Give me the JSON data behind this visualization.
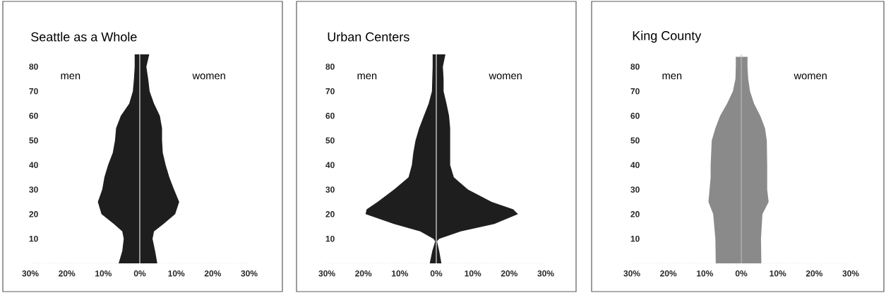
{
  "chart_data": [
    {
      "type": "area",
      "orientation": "horizontal",
      "title": "Seattle as a Whole",
      "annotations": [
        "men",
        "women"
      ],
      "xlim": [
        -30,
        30
      ],
      "ylim": [
        0,
        85
      ],
      "xticks": [
        {
          "value": -30,
          "label": "30%"
        },
        {
          "value": -20,
          "label": "20%"
        },
        {
          "value": -10,
          "label": "10%"
        },
        {
          "value": 0,
          "label": "0%"
        },
        {
          "value": 10,
          "label": "10%"
        },
        {
          "value": 20,
          "label": "20%"
        },
        {
          "value": 30,
          "label": "30%"
        }
      ],
      "yticks": [
        10,
        20,
        30,
        40,
        50,
        60,
        70,
        80
      ],
      "ref_lines": [
        {
          "axis": "x",
          "value": 0,
          "color": "#ffffff"
        }
      ],
      "series": [
        {
          "color": "#1e1e1e",
          "x": [
            0,
            5,
            10,
            13,
            16,
            20,
            25,
            30,
            35,
            40,
            45,
            50,
            55,
            60,
            65,
            70,
            75,
            80,
            85
          ],
          "values": [
            -5.8,
            -4.8,
            -4.4,
            -4.8,
            -7.1,
            -10.5,
            -11.5,
            -10.3,
            -9.7,
            -8.7,
            -7.4,
            -6.8,
            -6.5,
            -5.2,
            -2.9,
            -1.9,
            -1.6,
            -1.4,
            -1.4
          ]
        },
        {
          "color": "#1e1e1e",
          "x": [
            0,
            5,
            10,
            13,
            16,
            20,
            25,
            30,
            35,
            40,
            45,
            50,
            55,
            60,
            65,
            70,
            75,
            80,
            85
          ],
          "values": [
            4.8,
            4.2,
            3.5,
            3.9,
            6.5,
            9.7,
            10.8,
            9.4,
            8.1,
            7.1,
            6.3,
            6.1,
            6.1,
            5.5,
            3.9,
            2.7,
            2.3,
            1.8,
            2.6
          ]
        }
      ]
    },
    {
      "type": "area",
      "orientation": "horizontal",
      "title": "Urban Centers",
      "annotations": [
        "men",
        "women"
      ],
      "xlim": [
        -30,
        30
      ],
      "ylim": [
        0,
        85
      ],
      "xticks": [
        {
          "value": -30,
          "label": "30%"
        },
        {
          "value": -20,
          "label": "20%"
        },
        {
          "value": -10,
          "label": "10%"
        },
        {
          "value": 0,
          "label": "0%"
        },
        {
          "value": 10,
          "label": "10%"
        },
        {
          "value": 20,
          "label": "20%"
        },
        {
          "value": 30,
          "label": "30%"
        }
      ],
      "yticks": [
        10,
        20,
        30,
        40,
        50,
        60,
        70,
        80
      ],
      "ref_lines": [
        {
          "axis": "x",
          "value": 0,
          "color": "#ffffff"
        }
      ],
      "series": [
        {
          "color": "#1e1e1e",
          "x": [
            0,
            5,
            9,
            10,
            13,
            16,
            20,
            22,
            25,
            30,
            35,
            40,
            45,
            50,
            55,
            60,
            65,
            70,
            75,
            80,
            85
          ],
          "values": [
            -1.8,
            -1.1,
            -0.3,
            -0.8,
            -4.4,
            -11.6,
            -19.4,
            -19.1,
            -16.1,
            -11.6,
            -7.6,
            -6.7,
            -6.3,
            -5.7,
            -4.7,
            -3.4,
            -2.1,
            -1.2,
            -1.1,
            -1.0,
            -1.0
          ]
        },
        {
          "color": "#1e1e1e",
          "x": [
            0,
            5,
            9,
            10,
            13,
            16,
            20,
            22,
            25,
            30,
            35,
            40,
            45,
            50,
            55,
            60,
            65,
            70,
            75,
            80,
            85
          ],
          "values": [
            1.4,
            0.8,
            0.2,
            0.8,
            6.7,
            15.9,
            22.4,
            21.1,
            15.2,
            8.7,
            4.8,
            3.8,
            3.8,
            3.8,
            3.8,
            3.5,
            2.8,
            2.0,
            2.0,
            1.8,
            2.5
          ]
        }
      ]
    },
    {
      "type": "area",
      "orientation": "horizontal",
      "title": "King County",
      "annotations": [
        "men",
        "women"
      ],
      "xlim": [
        -30,
        30
      ],
      "ylim": [
        0,
        85
      ],
      "xticks": [
        {
          "value": -30,
          "label": "30%"
        },
        {
          "value": -20,
          "label": "20%"
        },
        {
          "value": -10,
          "label": "10%"
        },
        {
          "value": 0,
          "label": "0%"
        },
        {
          "value": 10,
          "label": "10%"
        },
        {
          "value": 20,
          "label": "20%"
        },
        {
          "value": 30,
          "label": "30%"
        }
      ],
      "yticks": [
        10,
        20,
        30,
        40,
        50,
        60,
        70,
        80
      ],
      "ref_lines": [
        {
          "axis": "x",
          "value": 0,
          "color": "#bdbdbd"
        }
      ],
      "series": [
        {
          "color": "#8a8a8a",
          "x": [
            0,
            10,
            20,
            25,
            30,
            35,
            40,
            50,
            55,
            60,
            65,
            70,
            75,
            80,
            84
          ],
          "values": [
            -7.0,
            -7.1,
            -7.7,
            -9.0,
            -8.7,
            -8.4,
            -8.4,
            -8.1,
            -7.1,
            -5.8,
            -3.9,
            -2.3,
            -1.6,
            -1.5,
            -1.5
          ]
        },
        {
          "color": "#8a8a8a",
          "x": [
            0,
            10,
            20,
            25,
            30,
            35,
            40,
            50,
            55,
            60,
            65,
            70,
            75,
            80,
            84
          ],
          "values": [
            5.5,
            5.4,
            5.8,
            7.5,
            7.1,
            7.1,
            7.1,
            7.0,
            6.5,
            5.2,
            3.5,
            2.4,
            1.9,
            1.7,
            1.7
          ]
        }
      ]
    }
  ]
}
